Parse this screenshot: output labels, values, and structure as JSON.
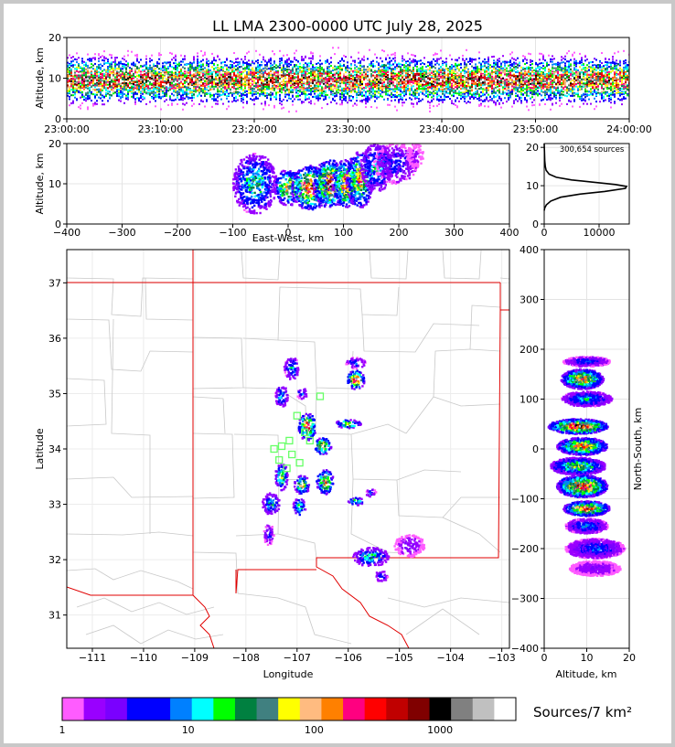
{
  "chart_data": [
    {
      "id": "time_height",
      "type": "heatmap",
      "title": "LL LMA 2300-0000 UTC July 28, 2025",
      "ylabel": "Altitude, km",
      "xlim": [
        "23:00:00",
        "24:00:00"
      ],
      "ylim": [
        0,
        20
      ],
      "x_ticks": [
        "23:00:00",
        "23:10:00",
        "23:20:00",
        "23:30:00",
        "23:40:00",
        "23:50:00",
        "24:00:00"
      ],
      "y_ticks": [
        0,
        10,
        20
      ],
      "altitude_band_km": [
        2,
        19
      ],
      "altitude_peak_km": 9.5,
      "grid": true
    },
    {
      "id": "ew_height",
      "type": "heatmap",
      "xlabel": "East-West, km",
      "ylabel": "Altitude, km",
      "xlim": [
        -400,
        400
      ],
      "ylim": [
        0,
        20
      ],
      "x_ticks": [
        -400,
        -300,
        -200,
        -100,
        0,
        100,
        200,
        300,
        400
      ],
      "y_ticks": [
        0,
        10,
        20
      ],
      "grid": true,
      "cells": [
        {
          "x": -60,
          "z": 10,
          "w": 40,
          "h": 15,
          "level": 0.5
        },
        {
          "x": 0,
          "z": 9,
          "w": 25,
          "h": 9,
          "level": 0.7
        },
        {
          "x": 40,
          "z": 9,
          "w": 35,
          "h": 11,
          "level": 0.9
        },
        {
          "x": 75,
          "z": 10,
          "w": 30,
          "h": 12,
          "level": 0.9
        },
        {
          "x": 105,
          "z": 10,
          "w": 25,
          "h": 12,
          "level": 0.85
        },
        {
          "x": 130,
          "z": 11,
          "w": 25,
          "h": 14,
          "level": 0.75
        },
        {
          "x": 160,
          "z": 14,
          "w": 30,
          "h": 12,
          "level": 0.45
        },
        {
          "x": 195,
          "z": 15,
          "w": 40,
          "h": 10,
          "level": 0.25
        },
        {
          "x": 230,
          "z": 17,
          "w": 15,
          "h": 6,
          "level": 0.1
        }
      ]
    },
    {
      "id": "altitude_histogram",
      "type": "line",
      "annotation": "300,654 sources",
      "xlim": [
        0,
        15500
      ],
      "ylim": [
        0,
        21
      ],
      "x_ticks": [
        0,
        10000
      ],
      "y_ticks": [
        0,
        10,
        20
      ],
      "grid": true,
      "x": [
        0,
        100,
        400,
        1200,
        3000,
        6500,
        11000,
        14800,
        15000,
        13000,
        9000,
        5000,
        2200,
        900,
        350,
        200,
        100,
        60,
        30,
        0
      ],
      "y": [
        3.5,
        4.2,
        5.0,
        6.0,
        7.0,
        7.8,
        8.5,
        9.3,
        9.8,
        10.3,
        10.9,
        11.5,
        12.2,
        13.0,
        14.0,
        15.0,
        16.5,
        18.0,
        19.5,
        21.0
      ]
    },
    {
      "id": "plan_view",
      "type": "heatmap",
      "xlabel": "Longitude",
      "ylabel": "Latitude",
      "xlim": [
        -111.5,
        -102.85
      ],
      "ylim": [
        30.4,
        37.6
      ],
      "x_ticks": [
        -111,
        -110,
        -109,
        -108,
        -107,
        -106,
        -105,
        -104,
        -103
      ],
      "y_ticks": [
        31,
        32,
        33,
        34,
        35,
        36,
        37
      ],
      "grid": true,
      "stations": [
        [
          -107.0,
          34.6
        ],
        [
          -106.85,
          34.3
        ],
        [
          -106.55,
          34.95
        ],
        [
          -107.3,
          34.05
        ],
        [
          -107.1,
          33.9
        ],
        [
          -107.2,
          33.65
        ],
        [
          -106.75,
          34.15
        ],
        [
          -107.45,
          34.0
        ],
        [
          -107.15,
          34.15
        ],
        [
          -106.95,
          33.75
        ],
        [
          -107.35,
          33.8
        ]
      ],
      "cells": [
        {
          "lon": -107.1,
          "lat": 35.45,
          "w": 0.3,
          "h": 0.4,
          "level": 0.4
        },
        {
          "lon": -107.3,
          "lat": 34.95,
          "w": 0.25,
          "h": 0.4,
          "level": 0.4
        },
        {
          "lon": -106.9,
          "lat": 35.0,
          "w": 0.2,
          "h": 0.2,
          "level": 0.35
        },
        {
          "lon": -105.85,
          "lat": 35.25,
          "w": 0.35,
          "h": 0.35,
          "level": 0.9
        },
        {
          "lon": -105.85,
          "lat": 35.55,
          "w": 0.4,
          "h": 0.2,
          "level": 0.3
        },
        {
          "lon": -106.8,
          "lat": 34.4,
          "w": 0.35,
          "h": 0.5,
          "level": 0.9
        },
        {
          "lon": -106.0,
          "lat": 34.45,
          "w": 0.5,
          "h": 0.15,
          "level": 0.7
        },
        {
          "lon": -106.5,
          "lat": 34.05,
          "w": 0.35,
          "h": 0.3,
          "level": 0.8
        },
        {
          "lon": -107.3,
          "lat": 33.5,
          "w": 0.25,
          "h": 0.5,
          "level": 0.6
        },
        {
          "lon": -106.9,
          "lat": 33.35,
          "w": 0.3,
          "h": 0.35,
          "level": 0.7
        },
        {
          "lon": -106.45,
          "lat": 33.4,
          "w": 0.35,
          "h": 0.45,
          "level": 0.75
        },
        {
          "lon": -107.5,
          "lat": 33.0,
          "w": 0.35,
          "h": 0.4,
          "level": 0.45
        },
        {
          "lon": -106.95,
          "lat": 32.95,
          "w": 0.25,
          "h": 0.35,
          "level": 0.5
        },
        {
          "lon": -107.55,
          "lat": 32.45,
          "w": 0.2,
          "h": 0.4,
          "level": 0.25
        },
        {
          "lon": -105.85,
          "lat": 33.05,
          "w": 0.3,
          "h": 0.15,
          "level": 0.6
        },
        {
          "lon": -105.55,
          "lat": 33.2,
          "w": 0.2,
          "h": 0.15,
          "level": 0.3
        },
        {
          "lon": -105.55,
          "lat": 32.05,
          "w": 0.7,
          "h": 0.35,
          "level": 0.45
        },
        {
          "lon": -104.8,
          "lat": 32.25,
          "w": 0.6,
          "h": 0.4,
          "level": 0.15
        },
        {
          "lon": -105.35,
          "lat": 31.7,
          "w": 0.25,
          "h": 0.2,
          "level": 0.3
        }
      ]
    },
    {
      "id": "ns_height",
      "type": "heatmap",
      "xlabel": "Altitude, km",
      "ylabel": "North-South, km",
      "xlim": [
        0,
        20
      ],
      "ylim": [
        -400,
        400
      ],
      "x_ticks": [
        0,
        10,
        20
      ],
      "y_ticks": [
        -400,
        -300,
        -200,
        -100,
        0,
        100,
        200,
        300,
        400
      ],
      "grid": true,
      "cells": [
        {
          "z": 10,
          "y": 175,
          "w": 11,
          "h": 20,
          "level": 0.3
        },
        {
          "z": 9,
          "y": 140,
          "w": 10,
          "h": 40,
          "level": 0.8
        },
        {
          "z": 10,
          "y": 100,
          "w": 12,
          "h": 30,
          "level": 0.4
        },
        {
          "z": 8,
          "y": 45,
          "w": 14,
          "h": 30,
          "level": 0.95
        },
        {
          "z": 9,
          "y": 5,
          "w": 12,
          "h": 35,
          "level": 0.8
        },
        {
          "z": 8,
          "y": -35,
          "w": 13,
          "h": 35,
          "level": 0.6
        },
        {
          "z": 9,
          "y": -75,
          "w": 12,
          "h": 45,
          "level": 0.9
        },
        {
          "z": 10,
          "y": -120,
          "w": 11,
          "h": 30,
          "level": 0.85
        },
        {
          "z": 10,
          "y": -155,
          "w": 10,
          "h": 30,
          "level": 0.35
        },
        {
          "z": 12,
          "y": -200,
          "w": 14,
          "h": 40,
          "level": 0.3
        },
        {
          "z": 12,
          "y": -240,
          "w": 12,
          "h": 30,
          "level": 0.15
        }
      ]
    },
    {
      "id": "colorbar",
      "type": "bar",
      "label": "Sources/7 km²",
      "scale": "log",
      "range": [
        1,
        4000
      ],
      "tick_values": [
        1,
        10,
        100,
        1000
      ],
      "tick_labels": [
        "1",
        "10",
        "100",
        "1000"
      ],
      "colors": [
        "#ff5cff",
        "#9900ff",
        "#7a00ff",
        "#0000ff",
        "#0000ff",
        "#0080ff",
        "#00ffff",
        "#00ff00",
        "#008040",
        "#408080",
        "#ffff00",
        "#ffbb80",
        "#ff8000",
        "#ff0080",
        "#ff0000",
        "#c00000",
        "#800000",
        "#000000",
        "#808080",
        "#c0c0c0",
        "#ffffff"
      ]
    }
  ]
}
